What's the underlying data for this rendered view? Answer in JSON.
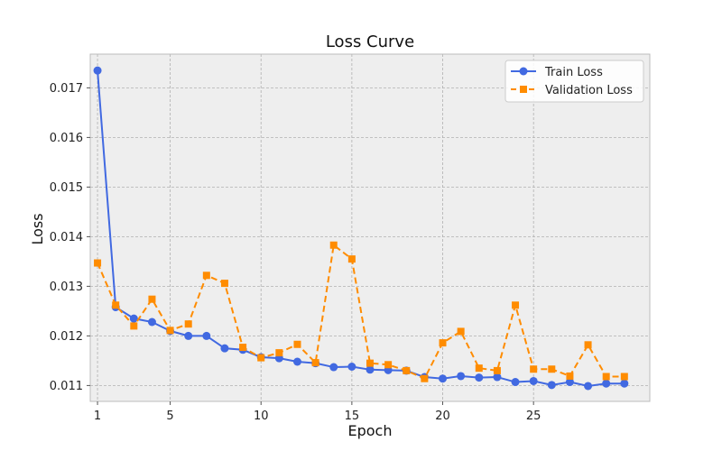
{
  "chart_data": {
    "type": "line",
    "title": "Loss Curve",
    "xlabel": "Epoch",
    "ylabel": "Loss",
    "xlim": [
      0.6,
      31.4
    ],
    "ylim": [
      0.01068,
      0.01768
    ],
    "xticks": [
      1,
      5,
      10,
      15,
      20,
      25
    ],
    "yticks": [
      0.011,
      0.012,
      0.013,
      0.014,
      0.015,
      0.016,
      0.017
    ],
    "ytick_labels": [
      "0.011",
      "0.012",
      "0.013",
      "0.014",
      "0.015",
      "0.016",
      "0.017"
    ],
    "grid": true,
    "legend_position": "top-right",
    "x": [
      1,
      2,
      3,
      4,
      5,
      6,
      7,
      8,
      9,
      10,
      11,
      12,
      13,
      14,
      15,
      16,
      17,
      18,
      19,
      20,
      21,
      22,
      23,
      24,
      25,
      26,
      27,
      28,
      29,
      30
    ],
    "series": [
      {
        "name": "Train Loss",
        "color": "#4169e1",
        "line_style": "solid",
        "marker": "circle",
        "values": [
          0.01735,
          0.01258,
          0.01235,
          0.01228,
          0.0121,
          0.012,
          0.012,
          0.01175,
          0.01172,
          0.01157,
          0.01155,
          0.01148,
          0.01145,
          0.01137,
          0.01138,
          0.01132,
          0.01131,
          0.0113,
          0.01117,
          0.01114,
          0.01119,
          0.01116,
          0.01117,
          0.01107,
          0.01109,
          0.01101,
          0.01107,
          0.01099,
          0.01104,
          0.01104
        ]
      },
      {
        "name": "Validation Loss",
        "color": "#ff8c00",
        "line_style": "dashed",
        "marker": "square",
        "values": [
          0.01347,
          0.01262,
          0.0122,
          0.01274,
          0.01211,
          0.01224,
          0.01322,
          0.01306,
          0.01177,
          0.01156,
          0.01166,
          0.01183,
          0.01146,
          0.01383,
          0.01355,
          0.01145,
          0.01142,
          0.0113,
          0.01114,
          0.01186,
          0.01209,
          0.01135,
          0.0113,
          0.01262,
          0.01133,
          0.01133,
          0.01119,
          0.01182,
          0.01118,
          0.01118
        ]
      }
    ]
  }
}
